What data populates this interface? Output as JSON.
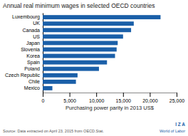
{
  "chart_data": {
    "type": "bar",
    "orientation": "horizontal",
    "title": "Annual real minimum wages in selected OECD countries",
    "xlabel": "Purchasing power parity in 2013 US$",
    "annotations": [
      "Source: Data extracted on April 23, 2015 from OECD.Stat.",
      "I  Z  A",
      "World of Labor"
    ],
    "categories": [
      "Luxembourg",
      "UK",
      "Canada",
      "US",
      "Japan",
      "Slovenia",
      "Korea",
      "Spain",
      "Poland",
      "Czech Republic",
      "Chile",
      "Mexico"
    ],
    "values": [
      22000,
      17000,
      16500,
      15000,
      14000,
      13800,
      13500,
      12000,
      10500,
      6500,
      6200,
      1800
    ],
    "color": "#1a5fa8",
    "xlim": [
      0,
      25000
    ],
    "xticks": [
      0,
      {
        "value": 5000,
        "label": "5,000"
      },
      {
        "value": 10000,
        "label": "10,000"
      },
      {
        "value": 15000,
        "label": "15,000"
      },
      {
        "value": 20000,
        "label": "20,000"
      },
      {
        "value": 25000,
        "label": "25,000"
      }
    ]
  }
}
